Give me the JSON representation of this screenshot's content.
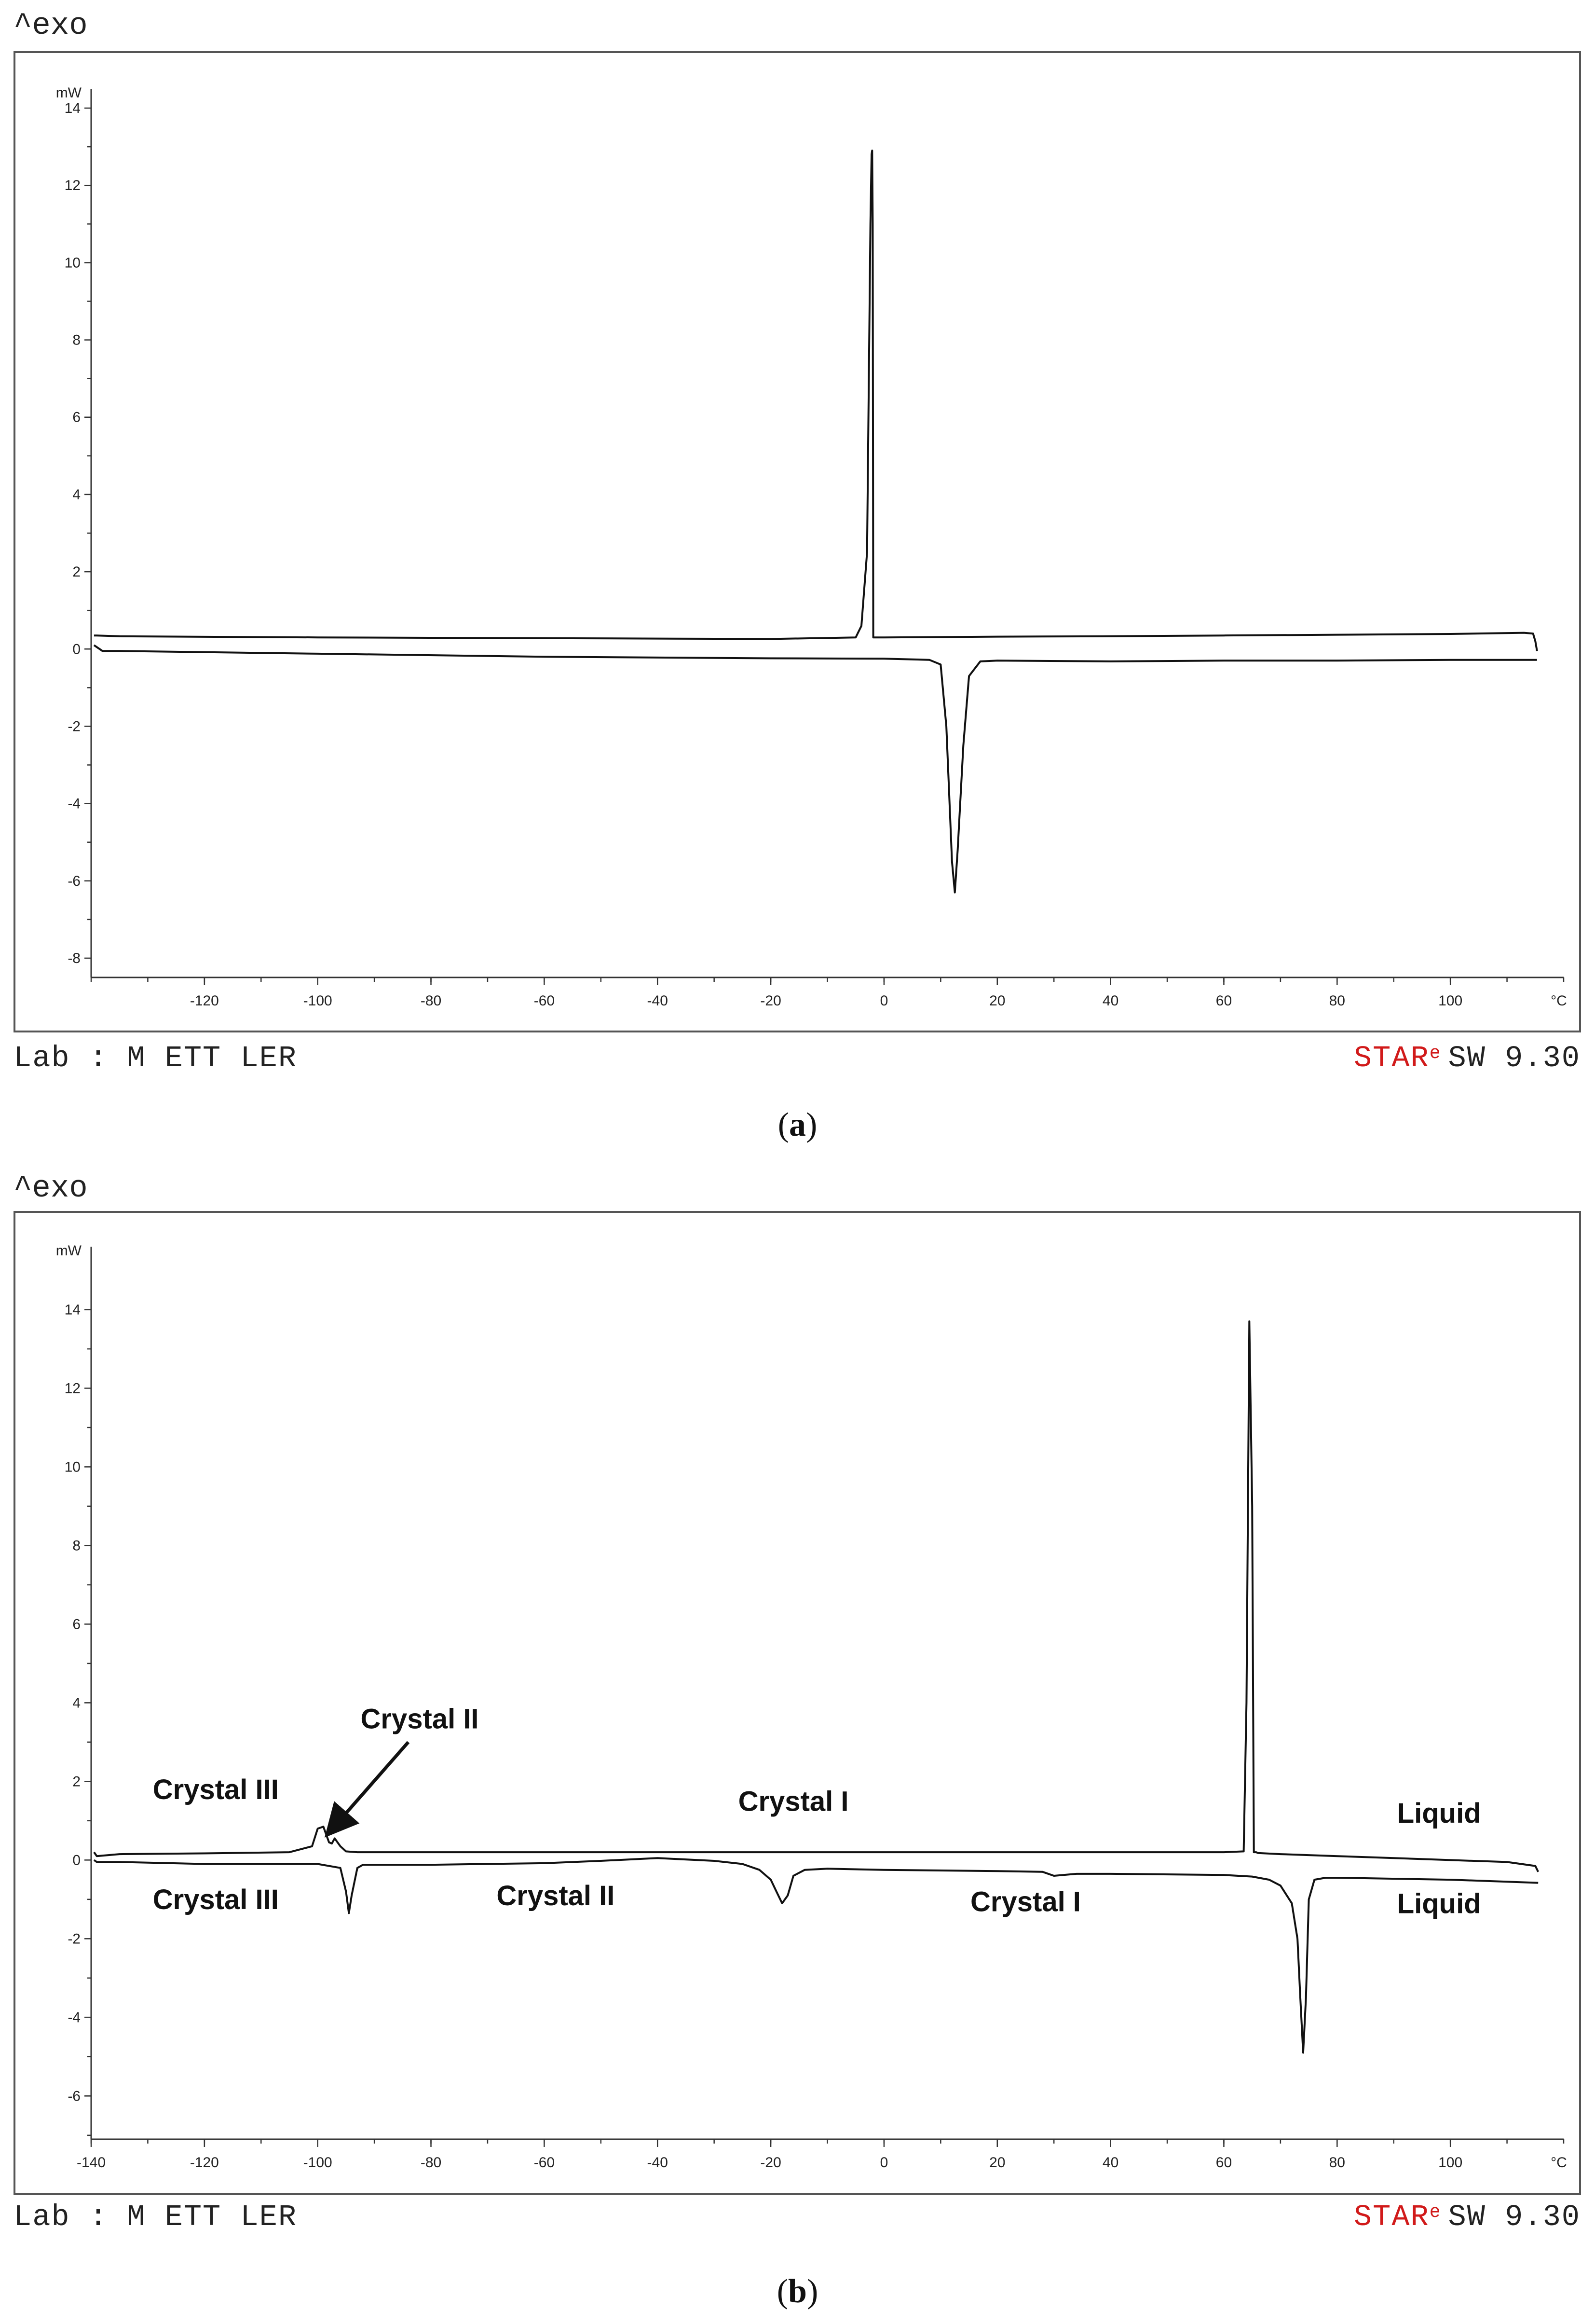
{
  "panels": [
    {
      "id": "a",
      "exo_label": "^exo",
      "footer_left": "Lab : M ETT LER",
      "footer_right_red": "STAR",
      "footer_right_sup": "e",
      "footer_right_rest": "SW 9.30",
      "caption_open": "(",
      "caption_letter": "a",
      "caption_close": ")"
    },
    {
      "id": "b",
      "exo_label": "^exo",
      "footer_left": "Lab : M ETT LER",
      "footer_right_red": "STAR",
      "footer_right_sup": "e",
      "footer_right_rest": "SW 9.30",
      "caption_open": "(",
      "caption_letter": "b",
      "caption_close": ")"
    }
  ],
  "chart_data": [
    {
      "type": "line",
      "xlabel": "°C",
      "ylabel": "mW",
      "xlim": [
        -140,
        120
      ],
      "ylim": [
        -8.5,
        14.5
      ],
      "x_ticks": [
        -120,
        -100,
        -80,
        -60,
        -40,
        -20,
        0,
        20,
        40,
        60,
        80,
        100
      ],
      "y_ticks": [
        14,
        12,
        10,
        8,
        6,
        4,
        2,
        0,
        -2,
        -4,
        -6,
        -8
      ],
      "series": [
        {
          "x": [
            -139.5,
            -139,
            -135,
            -100,
            -60,
            -20,
            -5,
            -4,
            -3,
            -2.4,
            -2.2,
            -2.1,
            -2.0,
            -1.9,
            0,
            20,
            40,
            60,
            80,
            100,
            113,
            114.6,
            115,
            115.3
          ],
          "y": [
            0.35,
            0.35,
            0.33,
            0.3,
            0.28,
            0.26,
            0.3,
            0.6,
            2.5,
            11.0,
            12.8,
            12.9,
            11.0,
            0.3,
            0.3,
            0.32,
            0.33,
            0.35,
            0.37,
            0.39,
            0.42,
            0.4,
            0.2,
            -0.05
          ]
        },
        {
          "x": [
            -139.5,
            -138,
            -135,
            -100,
            -60,
            -20,
            0,
            8,
            10,
            11,
            12,
            12.5,
            13,
            14,
            15,
            17,
            20,
            40,
            60,
            80,
            100,
            115.3
          ],
          "y": [
            0.1,
            -0.05,
            -0.05,
            -0.12,
            -0.2,
            -0.24,
            -0.25,
            -0.28,
            -0.4,
            -2.0,
            -5.5,
            -6.3,
            -5.2,
            -2.5,
            -0.7,
            -0.32,
            -0.3,
            -0.32,
            -0.3,
            -0.3,
            -0.28,
            -0.28
          ]
        }
      ],
      "annotations": []
    },
    {
      "type": "line",
      "xlabel": "°C",
      "ylabel": "mW",
      "xlim": [
        -140,
        120
      ],
      "ylim": [
        -7.1,
        15.6
      ],
      "x_ticks": [
        -140,
        -120,
        -100,
        -80,
        -60,
        -40,
        -20,
        0,
        20,
        40,
        60,
        80,
        100
      ],
      "y_ticks": [
        14,
        12,
        10,
        8,
        6,
        4,
        2,
        0,
        -2,
        -4,
        -6
      ],
      "series": [
        {
          "x": [
            -139.5,
            -139,
            -135,
            -120,
            -105,
            -101,
            -100,
            -99,
            -98,
            -97.5,
            -97,
            -96,
            -95,
            -93,
            -80,
            -60,
            -40,
            -20,
            0,
            20,
            40,
            60,
            63.5,
            64,
            64.5,
            65,
            65.3,
            65.7,
            66,
            70,
            80,
            90,
            100,
            110,
            115,
            115.5
          ],
          "y": [
            0.2,
            0.1,
            0.15,
            0.17,
            0.2,
            0.35,
            0.8,
            0.85,
            0.45,
            0.42,
            0.55,
            0.35,
            0.22,
            0.2,
            0.2,
            0.2,
            0.2,
            0.2,
            0.2,
            0.2,
            0.2,
            0.2,
            0.22,
            4.0,
            13.7,
            9.0,
            0.2,
            0.2,
            0.18,
            0.15,
            0.1,
            0.05,
            0.0,
            -0.05,
            -0.15,
            -0.3
          ]
        },
        {
          "x": [
            -139.5,
            -139,
            -135,
            -120,
            -100,
            -96,
            -95,
            -94.5,
            -94,
            -93,
            -92,
            -80,
            -60,
            -50,
            -40,
            -30,
            -25,
            -22,
            -20,
            -19,
            -18,
            -17,
            -16,
            -14,
            -10,
            0,
            20,
            28,
            30,
            34,
            40,
            60,
            65,
            68,
            70,
            72,
            73,
            73.5,
            74,
            74.5,
            75,
            76,
            78,
            80,
            100,
            115.5
          ],
          "y": [
            0.0,
            -0.05,
            -0.05,
            -0.1,
            -0.1,
            -0.2,
            -0.8,
            -1.35,
            -0.9,
            -0.2,
            -0.12,
            -0.12,
            -0.08,
            -0.02,
            0.05,
            -0.02,
            -0.1,
            -0.25,
            -0.5,
            -0.8,
            -1.1,
            -0.9,
            -0.4,
            -0.25,
            -0.22,
            -0.25,
            -0.28,
            -0.3,
            -0.4,
            -0.35,
            -0.35,
            -0.38,
            -0.42,
            -0.5,
            -0.65,
            -1.1,
            -2.0,
            -3.5,
            -4.9,
            -3.5,
            -1.0,
            -0.5,
            -0.45,
            -0.45,
            -0.5,
            -0.58
          ]
        }
      ],
      "annotations": [
        {
          "text": "Crystal III",
          "x": -118,
          "y": 1.55
        },
        {
          "text": "Crystal II",
          "x": -82,
          "y": 3.35
        },
        {
          "text": "Crystal I",
          "x": -16,
          "y": 1.25
        },
        {
          "text": "Liquid",
          "x": 98,
          "y": 0.95
        },
        {
          "text": "Crystal III",
          "x": -118,
          "y": -1.25
        },
        {
          "text": "Crystal II",
          "x": -58,
          "y": -1.15
        },
        {
          "text": "Crystal I",
          "x": 25,
          "y": -1.3
        },
        {
          "text": "Liquid",
          "x": 98,
          "y": -1.35
        }
      ],
      "arrow": {
        "from": [
          -84,
          3.0
        ],
        "to": [
          -98,
          0.7
        ]
      }
    }
  ]
}
